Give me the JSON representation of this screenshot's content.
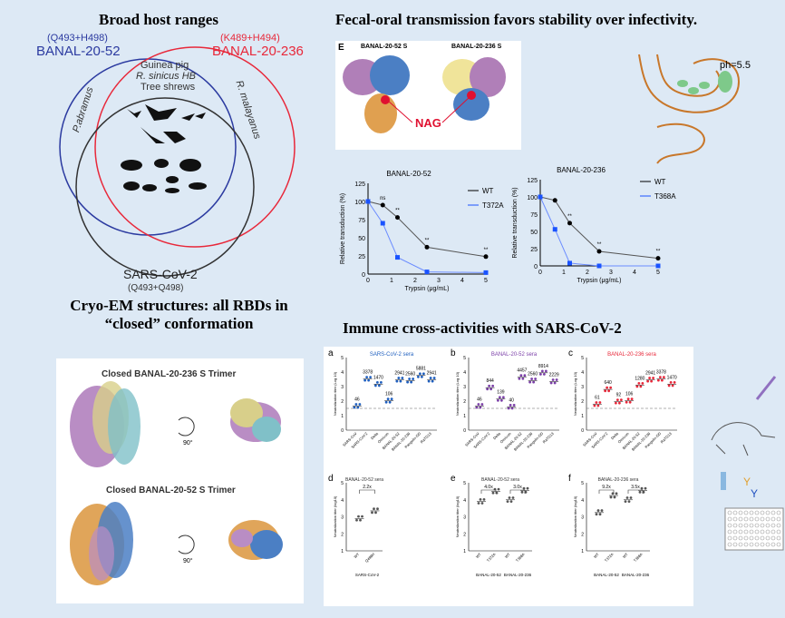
{
  "venn": {
    "title": "Broad host ranges",
    "banal52": {
      "name": "BANAL-20-52",
      "residues": "(Q493+H498)",
      "color": "#2b3aa0"
    },
    "banal236": {
      "name": "BANAL-20-236",
      "residues": "(K489+H494)",
      "color": "#e8283a"
    },
    "sars2": {
      "name": "SARS-CoV-2",
      "residues": "(Q493+Q498)",
      "color": "#333333"
    },
    "shared_hosts": [
      "Guinea pig",
      "R. sinicus HB",
      "Tree shrews"
    ],
    "left_only": "P.abramus",
    "right_only": "R. malayanus"
  },
  "fecal": {
    "title": "Fecal-oral transmission favors stability over infectivity.",
    "panel_letter": "E",
    "structure_labels": [
      "BANAL-20-52 S",
      "BANAL-20-236 S"
    ],
    "nag_label": "NAG",
    "ph_label": "ph=5.5"
  },
  "chart_data": [
    {
      "type": "line",
      "title": "BANAL-20-52",
      "xlabel": "Trypsin (μg/mL)",
      "ylabel": "Relative transduction (%)",
      "xlim": [
        0,
        5
      ],
      "ylim": [
        0,
        125
      ],
      "xticks": [
        "0",
        "1",
        "2",
        "3",
        "4",
        "5"
      ],
      "yticks": [
        "0",
        "25",
        "50",
        "75",
        "100",
        "125"
      ],
      "x": [
        0,
        0.625,
        1.25,
        2.5,
        5
      ],
      "series": [
        {
          "name": "WT",
          "color": "#000000",
          "values": [
            100,
            95,
            78,
            37,
            24
          ]
        },
        {
          "name": "T372A",
          "color": "#1a53ff",
          "values": [
            100,
            70,
            23,
            3,
            2
          ]
        }
      ],
      "annotations": [
        "ns",
        "**",
        "**",
        "**"
      ],
      "legend": "top-right"
    },
    {
      "type": "line",
      "title": "BANAL-20-236",
      "xlabel": "Trypsin (μg/mL)",
      "ylabel": "Relative transduction (%)",
      "xlim": [
        0,
        5
      ],
      "ylim": [
        0,
        125
      ],
      "xticks": [
        "0",
        "1",
        "2",
        "3",
        "4",
        "5"
      ],
      "yticks": [
        "0",
        "25",
        "50",
        "75",
        "100",
        "125"
      ],
      "x": [
        0,
        0.625,
        1.25,
        2.5,
        5
      ],
      "series": [
        {
          "name": "WT",
          "color": "#000000",
          "values": [
            100,
            95,
            62,
            21,
            11
          ]
        },
        {
          "name": "T368A",
          "color": "#1a53ff",
          "values": [
            100,
            53,
            4,
            0,
            0
          ]
        }
      ],
      "annotations": [
        "**",
        "**",
        "**"
      ],
      "legend": "top-right"
    },
    {
      "type": "scatter",
      "letter": "a",
      "title": "SARS-CoV-2 sera",
      "color": "#1f5fbf",
      "ylabel": "Neutralization titer (Log 10)",
      "ylim": [
        0,
        5
      ],
      "yticks": [
        "0",
        "1",
        "2",
        "3",
        "4",
        "5"
      ],
      "threshold": 1.5,
      "categories": [
        "SARS-CoV",
        "SARS-CoV-2",
        "Delta",
        "Omicron",
        "BANAL-20-52",
        "BANAL-20-236",
        "Pangolin-GD",
        "RaTG13"
      ],
      "values": [
        46,
        3378,
        1470,
        106,
        2941,
        2560,
        5881,
        2941
      ]
    },
    {
      "type": "scatter",
      "letter": "b",
      "title": "BANAL-20-52 sera",
      "color": "#7b3fa8",
      "ylabel": "Neutralization titer (Log 10)",
      "ylim": [
        0,
        5
      ],
      "yticks": [
        "0",
        "1",
        "2",
        "3",
        "4",
        "5"
      ],
      "threshold": 1.5,
      "categories": [
        "SARS-CoV",
        "SARS-CoV-2",
        "Delta",
        "Omicron",
        "BANAL-20-52",
        "BANAL-20-236",
        "Pangolin-GD",
        "RaTG13"
      ],
      "values": [
        46,
        844,
        139,
        40,
        4457,
        2560,
        8914,
        2229
      ]
    },
    {
      "type": "scatter",
      "letter": "c",
      "title": "BANAL-20-236 sera",
      "color": "#e8283a",
      "ylabel": "Neutralization titer (Log 10)",
      "ylim": [
        0,
        5
      ],
      "yticks": [
        "0",
        "1",
        "2",
        "3",
        "4",
        "5"
      ],
      "threshold": 1.5,
      "categories": [
        "SARS-CoV",
        "SARS-CoV-2",
        "Delta",
        "Omicron",
        "BANAL-20-52",
        "BANAL-20-236",
        "Pangolin-GD",
        "RaTG13"
      ],
      "values": [
        61,
        640,
        92,
        106,
        1280,
        2941,
        3378,
        1470
      ]
    },
    {
      "type": "scatter",
      "letter": "d",
      "title": "BANAL-20-52 sera",
      "color": "#555555",
      "ylabel": "Neutralization titer (log10)",
      "ylim": [
        1,
        5
      ],
      "yticks": [
        "1",
        "2",
        "3",
        "4",
        "5"
      ],
      "categories": [
        "WT",
        "Q498H"
      ],
      "values": [
        2.9,
        3.35
      ],
      "groups": [
        "SARS-CoV-2"
      ],
      "folds": [
        "2.2x"
      ]
    },
    {
      "type": "scatter",
      "letter": "e",
      "title": "BANAL-20-52 sera",
      "color": "#555555",
      "ylabel": "Neutralization titer (log10)",
      "ylim": [
        1,
        5
      ],
      "yticks": [
        "1",
        "2",
        "3",
        "4",
        "5"
      ],
      "categories": [
        "WT",
        "T372A",
        "WT",
        "T368A"
      ],
      "values": [
        3.9,
        4.5,
        4.0,
        4.55
      ],
      "groups": [
        "BANAL-20-52",
        "BANAL-20-236"
      ],
      "folds": [
        "4.0x",
        "3.0x"
      ]
    },
    {
      "type": "scatter",
      "letter": "f",
      "title": "BANAL-20-236 sera",
      "color": "#555555",
      "ylabel": "Neutralization titer (log10)",
      "ylim": [
        1,
        5
      ],
      "yticks": [
        "1",
        "2",
        "3",
        "4",
        "5"
      ],
      "categories": [
        "WT",
        "T372A",
        "WT",
        "T368A"
      ],
      "values": [
        3.25,
        4.25,
        4.0,
        4.55
      ],
      "groups": [
        "BANAL-20-52",
        "BANAL-20-236"
      ],
      "folds": [
        "9.2x",
        "3.5x"
      ]
    }
  ],
  "cryo": {
    "title_line1": "Cryo-EM structures: all RBDs in",
    "title_line2": "“closed” conformation",
    "structure1": "Closed BANAL-20-236 S Trimer",
    "structure2": "Closed BANAL-20-52 S Trimer",
    "rotation": "90°"
  },
  "immune": {
    "title": "Immune cross-activities with SARS-CoV-2"
  }
}
